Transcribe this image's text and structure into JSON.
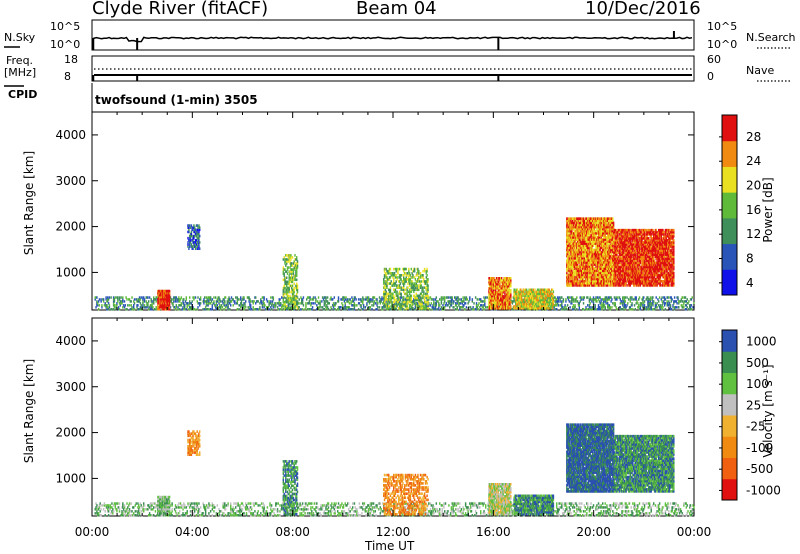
{
  "header": {
    "station": "Clyde River (fitACF)",
    "beam": "Beam 04",
    "date": "10/Dec/2016"
  },
  "noise_panel": {
    "left_label": "N.Sky",
    "right_label": "N.Search",
    "left_ticks": [
      "10^5",
      "10^0"
    ],
    "right_ticks": [
      "10^5",
      "10^0"
    ]
  },
  "freq_panel": {
    "left_label_line1": "Freq.",
    "left_label_line2": "[MHz]",
    "right_label": "Nave",
    "left_ticks": [
      "18",
      "8"
    ],
    "right_ticks": [
      "60",
      "0"
    ]
  },
  "cpid": {
    "label": "CPID",
    "program": "twofsound (1-min) 3505"
  },
  "chart_data": [
    {
      "type": "heatmap",
      "title": "Power",
      "ylabel": "Slant Range [km]",
      "xlabel": "",
      "x_range_hours": [
        0,
        24
      ],
      "ylim": [
        180,
        4500
      ],
      "y_ticks": [
        "4000",
        "3000",
        "2000",
        "1000"
      ],
      "colorbar_label": "Power [dB]",
      "colorbar_ticks": [
        "28",
        "24",
        "20",
        "16",
        "12",
        "8",
        "4"
      ],
      "colorbar_colors": [
        "#1010e8",
        "#2a55b8",
        "#3f8f5a",
        "#5fba3a",
        "#e8e020",
        "#f08a10",
        "#e01010"
      ],
      "regions": [
        {
          "t0": 0.1,
          "t1": 24,
          "r0": 180,
          "r1": 480,
          "density": 0.35,
          "level": 2
        },
        {
          "t0": 2.6,
          "t1": 3.1,
          "r0": 180,
          "r1": 620,
          "density": 0.95,
          "level": 6
        },
        {
          "t0": 3.8,
          "t1": 4.3,
          "r0": 1500,
          "r1": 2050,
          "density": 0.6,
          "level": 1
        },
        {
          "t0": 7.6,
          "t1": 8.2,
          "r0": 200,
          "r1": 1400,
          "density": 0.5,
          "level": 3
        },
        {
          "t0": 11.6,
          "t1": 13.4,
          "r0": 200,
          "r1": 1100,
          "density": 0.45,
          "level": 3
        },
        {
          "t0": 15.8,
          "t1": 16.7,
          "r0": 200,
          "r1": 900,
          "density": 0.85,
          "level": 5
        },
        {
          "t0": 16.8,
          "t1": 18.4,
          "r0": 200,
          "r1": 650,
          "density": 0.8,
          "level": 4
        },
        {
          "t0": 18.9,
          "t1": 20.8,
          "r0": 700,
          "r1": 2200,
          "density": 0.9,
          "level": 5
        },
        {
          "t0": 20.8,
          "t1": 23.2,
          "r0": 700,
          "r1": 1950,
          "density": 0.85,
          "level": 6
        }
      ]
    },
    {
      "type": "heatmap",
      "title": "Velocity",
      "ylabel": "Slant Range [km]",
      "xlabel": "Time UT",
      "x_range_hours": [
        0,
        24
      ],
      "ylim": [
        180,
        4500
      ],
      "y_ticks": [
        "4000",
        "3000",
        "2000",
        "1000"
      ],
      "x_ticks": [
        "00:00",
        "04:00",
        "08:00",
        "12:00",
        "16:00",
        "20:00",
        "00:00"
      ],
      "colorbar_label": "Velocity [m s⁻¹]",
      "colorbar_ticks": [
        "1000",
        "500",
        "100",
        "25",
        "-25",
        "-100",
        "-500",
        "-1000"
      ],
      "colorbar_colors": [
        "#e01010",
        "#f06010",
        "#f08a10",
        "#f0b030",
        "#c0c0c0",
        "#60c040",
        "#3a8f50",
        "#2a50b0"
      ],
      "regions": [
        {
          "t0": 0.1,
          "t1": 24,
          "r0": 180,
          "r1": 480,
          "density": 0.3,
          "level": 5
        },
        {
          "t0": 2.6,
          "t1": 3.1,
          "r0": 180,
          "r1": 620,
          "density": 0.9,
          "level": 5
        },
        {
          "t0": 3.8,
          "t1": 4.3,
          "r0": 1500,
          "r1": 2050,
          "density": 0.6,
          "level": 2
        },
        {
          "t0": 7.6,
          "t1": 8.2,
          "r0": 200,
          "r1": 1400,
          "density": 0.5,
          "level": 6
        },
        {
          "t0": 11.6,
          "t1": 13.4,
          "r0": 200,
          "r1": 1100,
          "density": 0.45,
          "level": 2
        },
        {
          "t0": 15.8,
          "t1": 16.7,
          "r0": 200,
          "r1": 900,
          "density": 0.85,
          "level": 4
        },
        {
          "t0": 16.8,
          "t1": 18.4,
          "r0": 200,
          "r1": 650,
          "density": 0.8,
          "level": 6
        },
        {
          "t0": 18.9,
          "t1": 20.8,
          "r0": 700,
          "r1": 2200,
          "density": 0.9,
          "level": 7
        },
        {
          "t0": 20.8,
          "t1": 23.2,
          "r0": 700,
          "r1": 1950,
          "density": 0.85,
          "level": 6
        }
      ]
    }
  ]
}
